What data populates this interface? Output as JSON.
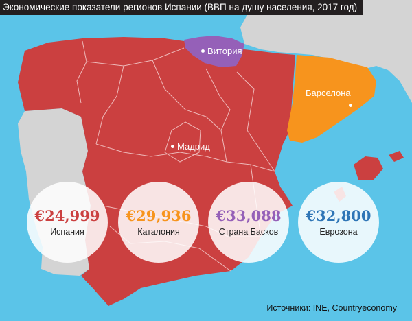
{
  "title": "Экономические показатели регионов Испании (ВВП на душу населения, 2017 год)",
  "colors": {
    "sea": "#5bc4e8",
    "neighbor_land": "#d4d4d4",
    "spain": "#cb4040",
    "catalonia": "#f7941d",
    "basque_country": "#9560b8"
  },
  "cities": {
    "vitoria": "Витория",
    "barcelona": "Барселона",
    "madrid": "Мадрид"
  },
  "stats": [
    {
      "value": "€24,999",
      "label": "Испания",
      "color": "#cb4040"
    },
    {
      "value": "€29,936",
      "label": "Каталония",
      "color": "#f7941d"
    },
    {
      "value": "€33,088",
      "label": "Страна Басков",
      "color": "#9560b8"
    },
    {
      "value": "€32,800",
      "label": "Еврозона",
      "color": "#2e75b6"
    }
  ],
  "source": "Источники: INE, Countryeconomy"
}
